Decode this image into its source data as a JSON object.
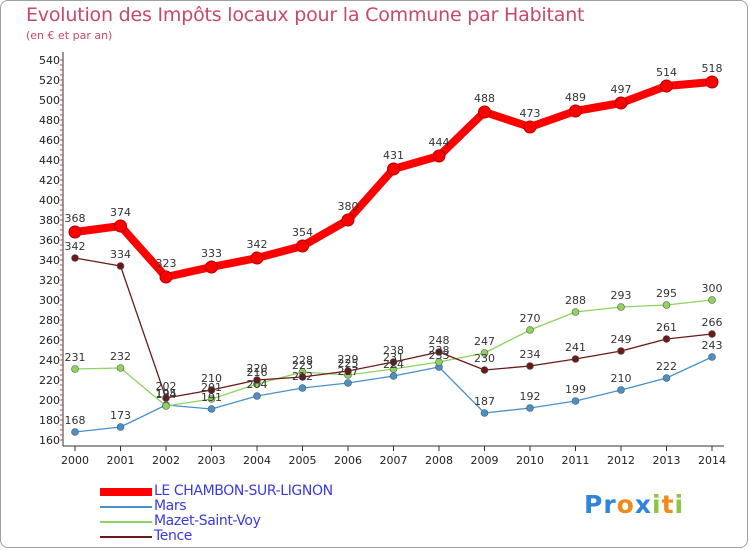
{
  "title": "Evolution des Impôts locaux pour la Commune par Habitant",
  "subtitle": "(en € et par an)",
  "logo": {
    "letters": [
      {
        "ch": "P",
        "color": "#2e86d6"
      },
      {
        "ch": "r",
        "color": "#2e86d6"
      },
      {
        "ch": "o",
        "color": "#f08a1c"
      },
      {
        "ch": "x",
        "color": "#2e86d6"
      },
      {
        "ch": "i",
        "color": "#8cc63e"
      },
      {
        "ch": "t",
        "color": "#f08a1c"
      },
      {
        "ch": "i",
        "color": "#8cc63e"
      }
    ]
  },
  "chart_data": {
    "type": "line",
    "title": "Evolution des Impôts locaux pour la Commune par Habitant",
    "xlabel": "",
    "ylabel": "(en € et par an)",
    "x": [
      "2000",
      "2001",
      "2002",
      "2003",
      "2004",
      "2005",
      "2006",
      "2007",
      "2008",
      "2009",
      "2010",
      "2011",
      "2012",
      "2013",
      "2014"
    ],
    "ylim": [
      160,
      540
    ],
    "yticks": [
      160,
      180,
      200,
      220,
      240,
      260,
      280,
      300,
      320,
      340,
      360,
      380,
      400,
      420,
      440,
      460,
      480,
      500,
      520,
      540
    ],
    "grid": false,
    "legend_position": "bottom-left",
    "series": [
      {
        "name": "LE CHAMBON-SUR-LIGNON",
        "color": "#ff0000",
        "values": [
          368,
          374,
          323,
          333,
          342,
          354,
          380,
          431,
          444,
          488,
          473,
          489,
          497,
          514,
          518
        ]
      },
      {
        "name": "Mars",
        "color": "#4a90c8",
        "values": [
          168,
          173,
          195,
          191,
          204,
          212,
          217,
          224,
          233,
          187,
          192,
          199,
          210,
          222,
          243
        ]
      },
      {
        "name": "Mazet-Saint-Voy",
        "color": "#8ed35e",
        "values": [
          231,
          232,
          194,
          201,
          216,
          228,
          225,
          231,
          238,
          247,
          270,
          288,
          293,
          295,
          300
        ]
      },
      {
        "name": "Tence",
        "color": "#6b1a1a",
        "values": [
          342,
          334,
          202,
          210,
          220,
          223,
          229,
          238,
          248,
          230,
          234,
          241,
          249,
          261,
          266
        ]
      }
    ]
  }
}
